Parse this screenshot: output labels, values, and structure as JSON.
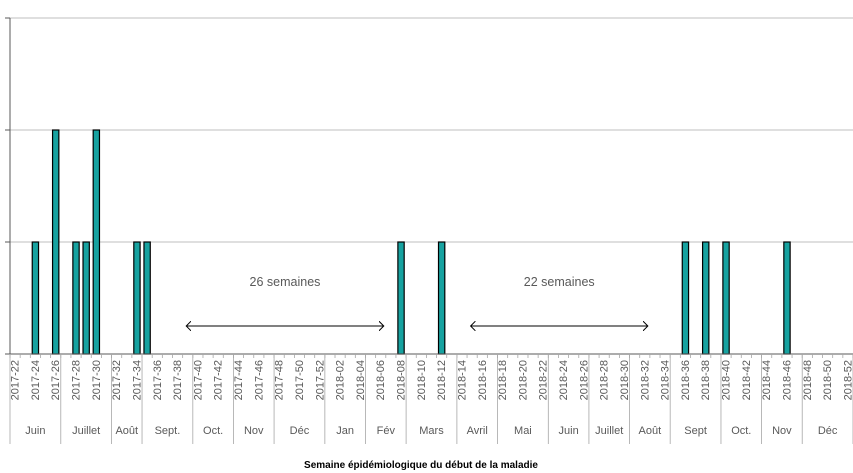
{
  "chart_data": {
    "type": "bar",
    "title": "",
    "xlabel": "Semaine épidémiologique du début de la maladie",
    "ylabel": "",
    "ylim": [
      0,
      3
    ],
    "grid": true,
    "bar_color": "#17A2A0",
    "bar_edge_color": "#000000",
    "grid_color": "#BFBFBF",
    "categories": [
      "2017-22",
      "2017-23",
      "2017-24",
      "2017-25",
      "2017-26",
      "2017-27",
      "2017-28",
      "2017-29",
      "2017-30",
      "2017-31",
      "2017-32",
      "2017-33",
      "2017-34",
      "2017-35",
      "2017-36",
      "2017-37",
      "2017-38",
      "2017-39",
      "2017-40",
      "2017-41",
      "2017-42",
      "2017-43",
      "2017-44",
      "2017-45",
      "2017-46",
      "2017-47",
      "2017-48",
      "2017-49",
      "2017-50",
      "2017-51",
      "2017-52",
      "2018-01",
      "2018-02",
      "2018-03",
      "2018-04",
      "2018-05",
      "2018-06",
      "2018-07",
      "2018-08",
      "2018-09",
      "2018-10",
      "2018-11",
      "2018-12",
      "2018-13",
      "2018-14",
      "2018-15",
      "2018-16",
      "2018-17",
      "2018-18",
      "2018-19",
      "2018-20",
      "2018-21",
      "2018-22",
      "2018-23",
      "2018-24",
      "2018-25",
      "2018-26",
      "2018-27",
      "2018-28",
      "2018-29",
      "2018-30",
      "2018-31",
      "2018-32",
      "2018-33",
      "2018-34",
      "2018-35",
      "2018-36",
      "2018-37",
      "2018-38",
      "2018-39",
      "2018-40",
      "2018-41",
      "2018-42",
      "2018-43",
      "2018-44",
      "2018-45",
      "2018-46",
      "2018-47",
      "2018-48",
      "2018-49",
      "2018-50",
      "2018-51",
      "2018-52"
    ],
    "tick_labels": [
      "2017-22",
      "2017-24",
      "2017-26",
      "2017-28",
      "2017-30",
      "2017-32",
      "2017-34",
      "2017-36",
      "2017-38",
      "2017-40",
      "2017-42",
      "2017-44",
      "2017-46",
      "2017-48",
      "2017-50",
      "2017-52",
      "2018-02",
      "2018-04",
      "2018-06",
      "2018-08",
      "2018-10",
      "2018-12",
      "2018-14",
      "2018-16",
      "2018-18",
      "2018-20",
      "2018-22",
      "2018-24",
      "2018-26",
      "2018-28",
      "2018-30",
      "2018-32",
      "2018-34",
      "2018-36",
      "2018-38",
      "2018-40",
      "2018-42",
      "2018-44",
      "2018-46",
      "2018-48",
      "2018-50",
      "2018-52"
    ],
    "values": [
      0,
      0,
      1,
      0,
      2,
      0,
      1,
      1,
      2,
      0,
      0,
      0,
      1,
      1,
      0,
      0,
      0,
      0,
      0,
      0,
      0,
      0,
      0,
      0,
      0,
      0,
      0,
      0,
      0,
      0,
      0,
      0,
      0,
      0,
      0,
      0,
      0,
      0,
      1,
      0,
      0,
      0,
      1,
      0,
      0,
      0,
      0,
      0,
      0,
      0,
      0,
      0,
      0,
      0,
      0,
      0,
      0,
      0,
      0,
      0,
      0,
      0,
      0,
      0,
      0,
      0,
      1,
      0,
      1,
      0,
      1,
      0,
      0,
      0,
      0,
      0,
      1,
      0,
      0,
      0,
      0,
      0,
      0
    ],
    "months": [
      {
        "label": "Juin",
        "start": 0,
        "end": 5
      },
      {
        "label": "Juillet",
        "start": 5,
        "end": 10
      },
      {
        "label": "Août",
        "start": 10,
        "end": 13
      },
      {
        "label": "Sept.",
        "start": 13,
        "end": 18
      },
      {
        "label": "Oct.",
        "start": 18,
        "end": 22
      },
      {
        "label": "Nov",
        "start": 22,
        "end": 26
      },
      {
        "label": "Déc",
        "start": 26,
        "end": 31
      },
      {
        "label": "Jan",
        "start": 31,
        "end": 35
      },
      {
        "label": "Fév",
        "start": 35,
        "end": 39
      },
      {
        "label": "Mars",
        "start": 39,
        "end": 44
      },
      {
        "label": "Avril",
        "start": 44,
        "end": 48
      },
      {
        "label": "Mai",
        "start": 48,
        "end": 53
      },
      {
        "label": "Juin",
        "start": 53,
        "end": 57
      },
      {
        "label": "Juillet",
        "start": 57,
        "end": 61
      },
      {
        "label": "Août",
        "start": 61,
        "end": 65
      },
      {
        "label": "Sept",
        "start": 65,
        "end": 70
      },
      {
        "label": "Oct.",
        "start": 70,
        "end": 74
      },
      {
        "label": "Nov",
        "start": 74,
        "end": 78
      },
      {
        "label": "Déc",
        "start": 78,
        "end": 83
      }
    ],
    "annotations": [
      {
        "text": "26 semaines",
        "from_week": "2017-39",
        "to_week": "2018-06"
      },
      {
        "text": "22 semaines",
        "from_week": "2018-15",
        "to_week": "2018-32"
      }
    ]
  }
}
